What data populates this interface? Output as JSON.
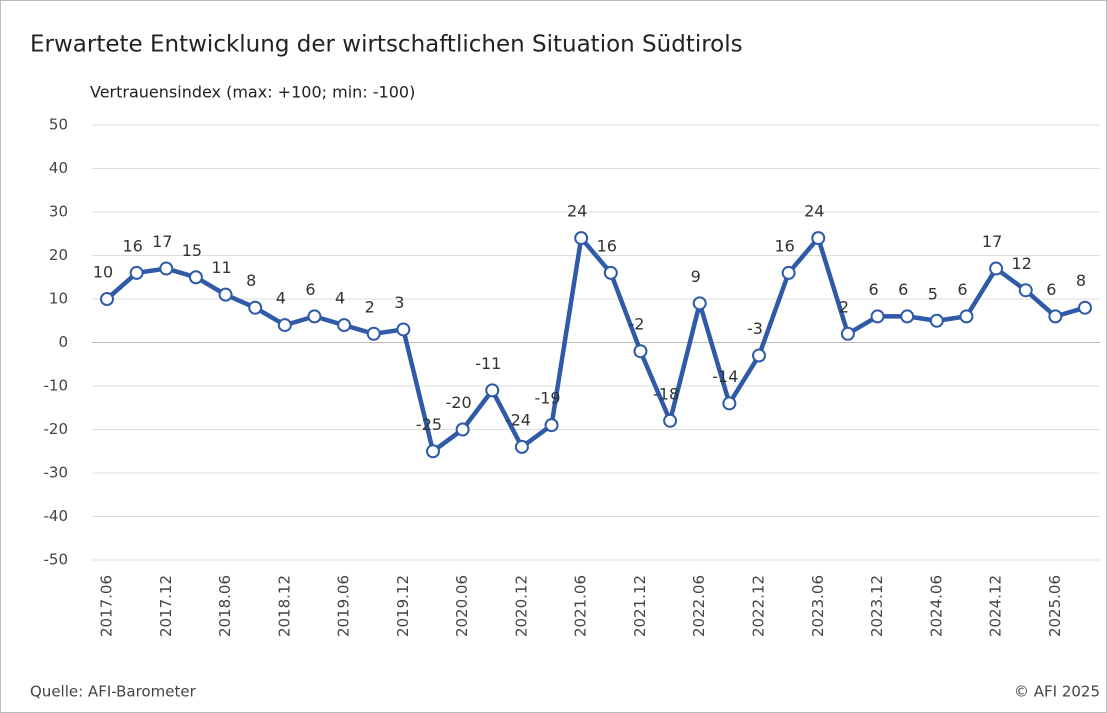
{
  "chart_data": {
    "type": "line",
    "title": "Erwartete Entwicklung der wirtschaftlichen Situation Südtirols",
    "subtitle": "Vertrauensindex (max: +100; min: -100)",
    "source": "Quelle: AFI-Barometer",
    "copyright": "© AFI 2025",
    "categories": [
      "2017.06",
      null,
      "2017.12",
      null,
      "2018.06",
      null,
      "2018.12",
      null,
      "2019.06",
      null,
      "2019.12",
      null,
      "2020.06",
      null,
      "2020.12",
      null,
      "2021.06",
      null,
      "2021.12",
      null,
      "2022.06",
      null,
      "2022.12",
      null,
      "2023.06",
      null,
      "2023.12",
      null,
      "2024.06",
      null,
      "2024.12",
      null,
      "2025.06",
      null
    ],
    "series": [
      {
        "name": "Vertrauensindex",
        "color": "#2e5aa7",
        "values": [
          10,
          16,
          17,
          15,
          11,
          8,
          4,
          6,
          4,
          2,
          3,
          -25,
          -20,
          -11,
          -24,
          -19,
          24,
          16,
          -2,
          -18,
          9,
          -14,
          -3,
          16,
          24,
          2,
          6,
          6,
          5,
          6,
          17,
          12,
          6,
          8
        ]
      }
    ],
    "ylim": [
      -50,
      50
    ],
    "yticks": [
      -50,
      -40,
      -30,
      -20,
      -10,
      0,
      10,
      20,
      30,
      40,
      50
    ],
    "grid": true
  }
}
